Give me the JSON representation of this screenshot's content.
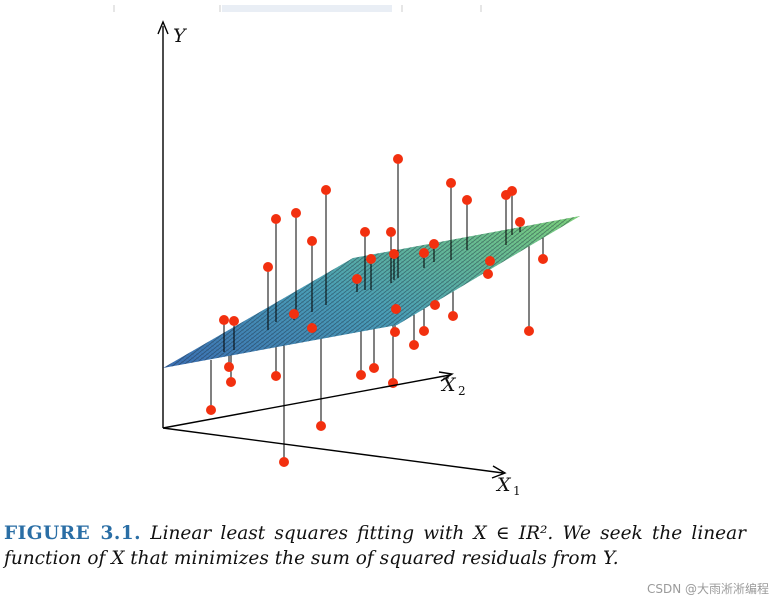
{
  "figure": {
    "axis_labels": {
      "y": "Y",
      "x1": "X",
      "x1_sub": "1",
      "x2": "X",
      "x2_sub": "2"
    },
    "colors": {
      "points": "#f2300f",
      "plane_low": "#3b6fb5",
      "plane_high": "#7dd27a",
      "axes": "#000000"
    },
    "plot_type": "3d scatter with fitted regression plane and vertical residual lines"
  },
  "caption": {
    "label": "FIGURE 3.1.",
    "text": "Linear least squares fitting with X ∈ IR². We seek the linear function of X that minimizes the sum of squared residuals from Y."
  },
  "watermark": "CSDN @大雨淅淅编程"
}
